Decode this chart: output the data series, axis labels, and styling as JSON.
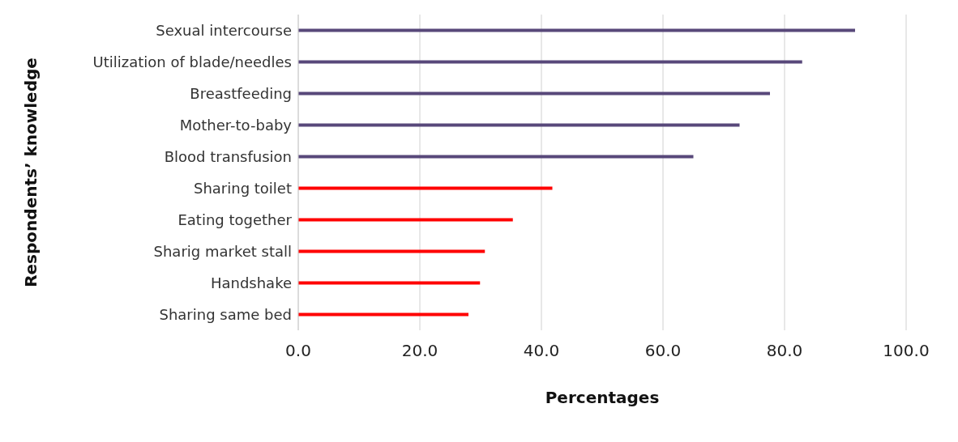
{
  "chart_data": {
    "type": "bar",
    "orientation": "horizontal",
    "xlabel": "Percentages",
    "ylabel": "Respondents’ knowledge",
    "categories": [
      "Sexual intercourse",
      "Utilization of blade/needles",
      "Breastfeeding",
      "Mother-to-baby",
      "Blood transfusion",
      "Sharing toilet",
      "Eating together",
      "Sharig market stall",
      "Handshake",
      "Sharing same bed"
    ],
    "values": [
      91.6,
      82.9,
      77.6,
      72.6,
      65.0,
      41.8,
      35.3,
      30.7,
      29.9,
      28.0
    ],
    "colors": [
      "#58487a",
      "#58487a",
      "#58487a",
      "#58487a",
      "#58487a",
      "#ff0000",
      "#ff0000",
      "#ff0000",
      "#ff0000",
      "#ff0000"
    ],
    "xlim": [
      0,
      100
    ],
    "xticks": [
      {
        "value": 0,
        "label": "0.0"
      },
      {
        "value": 20,
        "label": "20.0"
      },
      {
        "value": 40,
        "label": "40.0"
      },
      {
        "value": 60,
        "label": "60.0"
      },
      {
        "value": 80,
        "label": "80.0"
      },
      {
        "value": 100,
        "label": "100.0"
      }
    ],
    "grid": "x"
  }
}
